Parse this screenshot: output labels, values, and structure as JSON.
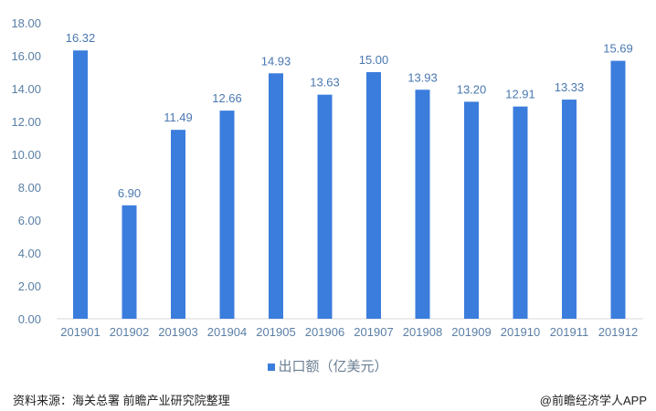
{
  "chart_data": {
    "type": "bar",
    "categories": [
      "201901",
      "201902",
      "201903",
      "201904",
      "201905",
      "201906",
      "201907",
      "201908",
      "201909",
      "201910",
      "201911",
      "201912"
    ],
    "series": [
      {
        "name": "出口额（亿美元）",
        "values": [
          16.32,
          6.9,
          11.49,
          12.66,
          14.93,
          13.63,
          15.0,
          13.93,
          13.2,
          12.91,
          13.33,
          15.69
        ]
      }
    ],
    "data_labels": [
      "16.32",
      "6.90",
      "11.49",
      "12.66",
      "14.93",
      "13.63",
      "15.00",
      "13.93",
      "13.20",
      "12.91",
      "13.33",
      "15.69"
    ],
    "yticks": [
      "0.00",
      "2.00",
      "4.00",
      "6.00",
      "8.00",
      "10.00",
      "12.00",
      "14.00",
      "16.00",
      "18.00"
    ],
    "ylim": [
      0,
      18
    ],
    "grid": false,
    "legend": "bottom",
    "bar_color": "#3b7ddd"
  },
  "legend_label": "出口额（亿美元）",
  "source": "资料来源：海关总署 前瞻产业研究院整理",
  "credit": "@前瞻经济学人APP"
}
